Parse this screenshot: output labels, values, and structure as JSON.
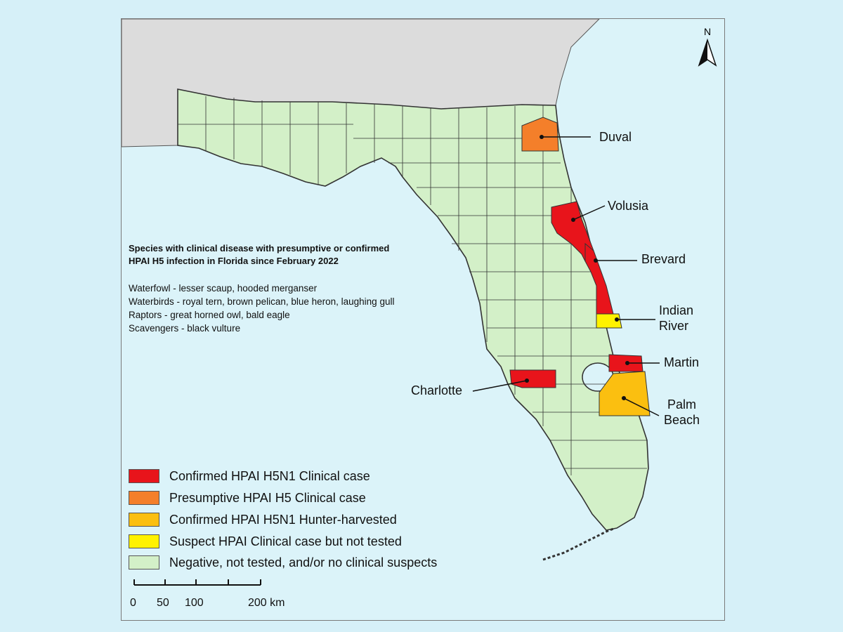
{
  "title": {
    "line1": "Species with clinical disease with presumptive or confirmed",
    "line2": "HPAI H5 infection in Florida since February 2022"
  },
  "species": [
    "Waterfowl - lesser scaup, hooded merganser",
    "Waterbirds - royal tern, brown pelican, blue heron, laughing gull",
    "Raptors - great horned owl, bald eagle",
    "Scavengers - black vulture"
  ],
  "counties": {
    "duval": {
      "name": "Duval",
      "status": "presumptive"
    },
    "volusia": {
      "name": "Volusia",
      "status": "confirmed"
    },
    "brevard": {
      "name": "Brevard",
      "status": "confirmed"
    },
    "indian_river": {
      "name_line1": "Indian",
      "name_line2": "River",
      "status": "suspect"
    },
    "martin": {
      "name": "Martin",
      "status": "confirmed"
    },
    "palm_beach": {
      "name_line1": "Palm",
      "name_line2": "Beach",
      "status": "hunter"
    },
    "charlotte": {
      "name": "Charlotte",
      "status": "confirmed"
    }
  },
  "legend": [
    {
      "label": "Confirmed HPAI H5N1 Clinical case",
      "color": "#e8141b"
    },
    {
      "label": "Presumptive HPAI H5 Clinical case",
      "color": "#f47f2a"
    },
    {
      "label": "Confirmed HPAI H5N1 Hunter-harvested",
      "color": "#fbbf10"
    },
    {
      "label": "Suspect HPAI Clinical case but not tested",
      "color": "#fff200"
    },
    {
      "label": "Negative, not tested, and/or no clinical suspects",
      "color": "#d3f0c8"
    }
  ],
  "scale_bar": {
    "labels": [
      "0",
      "50",
      "100",
      "200 km"
    ]
  },
  "north_arrow": "N",
  "colors": {
    "land": "#d3f0c8",
    "neighbor_state": "#dcdcdc",
    "water": "#dbf3f9",
    "border": "#333333"
  }
}
